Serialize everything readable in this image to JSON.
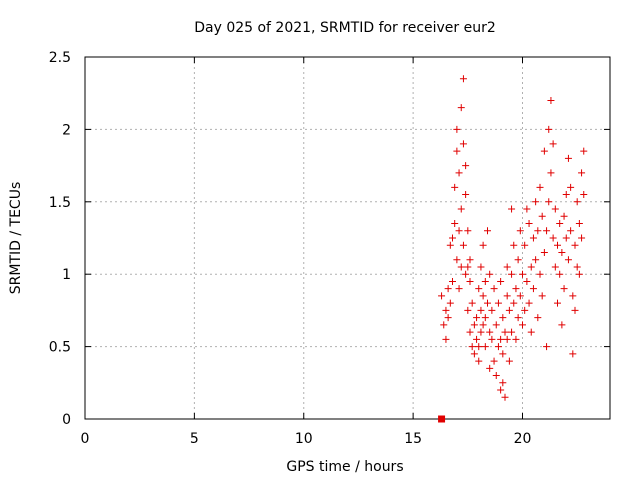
{
  "chart_data": {
    "type": "scatter",
    "title": "Day 025 of 2021, SRMTID for receiver eur2",
    "xlabel": "GPS time / hours",
    "ylabel": "SRMTID / TECUs",
    "xlim": [
      0,
      24
    ],
    "ylim": [
      0,
      2.5
    ],
    "xticks": [
      0,
      5,
      10,
      15,
      20
    ],
    "yticks": [
      0,
      0.5,
      1,
      1.5,
      2,
      2.5
    ],
    "xtick_labels": [
      "0",
      "5",
      "10",
      "15",
      "20"
    ],
    "ytick_labels": [
      "0",
      "0.5",
      "1",
      "1.5",
      "2",
      "2.5"
    ],
    "grid": true,
    "marker_color": "#e00000",
    "extra_point": {
      "x": 16.3,
      "y": 0.0,
      "marker": "square"
    },
    "series": [
      {
        "name": "SRMTID",
        "marker": "plus",
        "x": [
          16.3,
          16.4,
          16.5,
          16.5,
          16.6,
          16.6,
          16.7,
          16.7,
          16.8,
          16.8,
          16.9,
          16.9,
          17.0,
          17.0,
          17.0,
          17.1,
          17.1,
          17.1,
          17.2,
          17.2,
          17.2,
          17.3,
          17.3,
          17.3,
          17.4,
          17.4,
          17.4,
          17.5,
          17.5,
          17.5,
          17.6,
          17.6,
          17.6,
          17.7,
          17.7,
          17.8,
          17.8,
          17.9,
          17.9,
          18.0,
          18.0,
          18.0,
          18.1,
          18.1,
          18.1,
          18.2,
          18.2,
          18.2,
          18.3,
          18.3,
          18.3,
          18.4,
          18.4,
          18.5,
          18.5,
          18.5,
          18.6,
          18.6,
          18.7,
          18.7,
          18.8,
          18.8,
          18.9,
          18.9,
          19.0,
          19.0,
          19.0,
          19.1,
          19.1,
          19.1,
          19.2,
          19.2,
          19.3,
          19.3,
          19.3,
          19.4,
          19.4,
          19.5,
          19.5,
          19.5,
          19.6,
          19.6,
          19.7,
          19.7,
          19.8,
          19.8,
          19.9,
          19.9,
          20.0,
          20.0,
          20.1,
          20.1,
          20.2,
          20.2,
          20.3,
          20.3,
          20.4,
          20.4,
          20.5,
          20.5,
          20.6,
          20.6,
          20.7,
          20.7,
          20.8,
          20.8,
          20.9,
          20.9,
          21.0,
          21.0,
          21.1,
          21.1,
          21.2,
          21.2,
          21.3,
          21.3,
          21.4,
          21.4,
          21.5,
          21.5,
          21.6,
          21.6,
          21.7,
          21.7,
          21.8,
          21.8,
          21.9,
          21.9,
          22.0,
          22.0,
          22.1,
          22.1,
          22.2,
          22.2,
          22.3,
          22.3,
          22.4,
          22.4,
          22.5,
          22.5,
          22.6,
          22.6,
          22.7,
          22.7,
          22.8,
          22.8
        ],
        "y": [
          0.85,
          0.65,
          0.55,
          0.75,
          0.9,
          0.7,
          1.2,
          0.8,
          1.25,
          0.95,
          1.35,
          1.6,
          1.85,
          1.1,
          2.0,
          1.3,
          0.9,
          1.7,
          1.45,
          1.05,
          2.15,
          1.9,
          1.2,
          2.35,
          1.55,
          1.75,
          1.0,
          1.3,
          0.75,
          1.05,
          0.95,
          0.6,
          1.1,
          0.8,
          0.5,
          0.65,
          0.45,
          0.7,
          0.55,
          0.9,
          0.5,
          0.4,
          0.75,
          0.6,
          1.05,
          0.85,
          0.65,
          1.2,
          0.7,
          0.5,
          0.95,
          1.3,
          0.8,
          0.6,
          0.35,
          1.0,
          0.75,
          0.55,
          0.9,
          0.4,
          0.65,
          0.3,
          0.8,
          0.5,
          0.55,
          0.2,
          0.95,
          0.7,
          0.45,
          0.25,
          0.6,
          0.15,
          0.85,
          0.55,
          1.05,
          0.4,
          0.75,
          1.45,
          1.0,
          0.6,
          0.8,
          1.2,
          0.55,
          0.9,
          0.7,
          1.1,
          0.85,
          1.3,
          1.0,
          0.65,
          1.2,
          0.75,
          1.45,
          0.95,
          0.8,
          1.35,
          1.05,
          0.6,
          1.25,
          0.9,
          1.5,
          1.1,
          0.7,
          1.3,
          1.0,
          1.6,
          0.85,
          1.4,
          1.15,
          1.85,
          1.3,
          0.5,
          2.0,
          1.5,
          2.2,
          1.7,
          1.9,
          1.25,
          1.45,
          1.05,
          1.2,
          0.8,
          1.0,
          1.35,
          0.65,
          1.15,
          1.4,
          0.9,
          1.55,
          1.25,
          1.8,
          1.1,
          1.3,
          1.6,
          0.85,
          0.45,
          1.2,
          0.75,
          1.05,
          1.5,
          1.35,
          1.0,
          1.7,
          1.25,
          1.85,
          1.55
        ]
      }
    ]
  }
}
